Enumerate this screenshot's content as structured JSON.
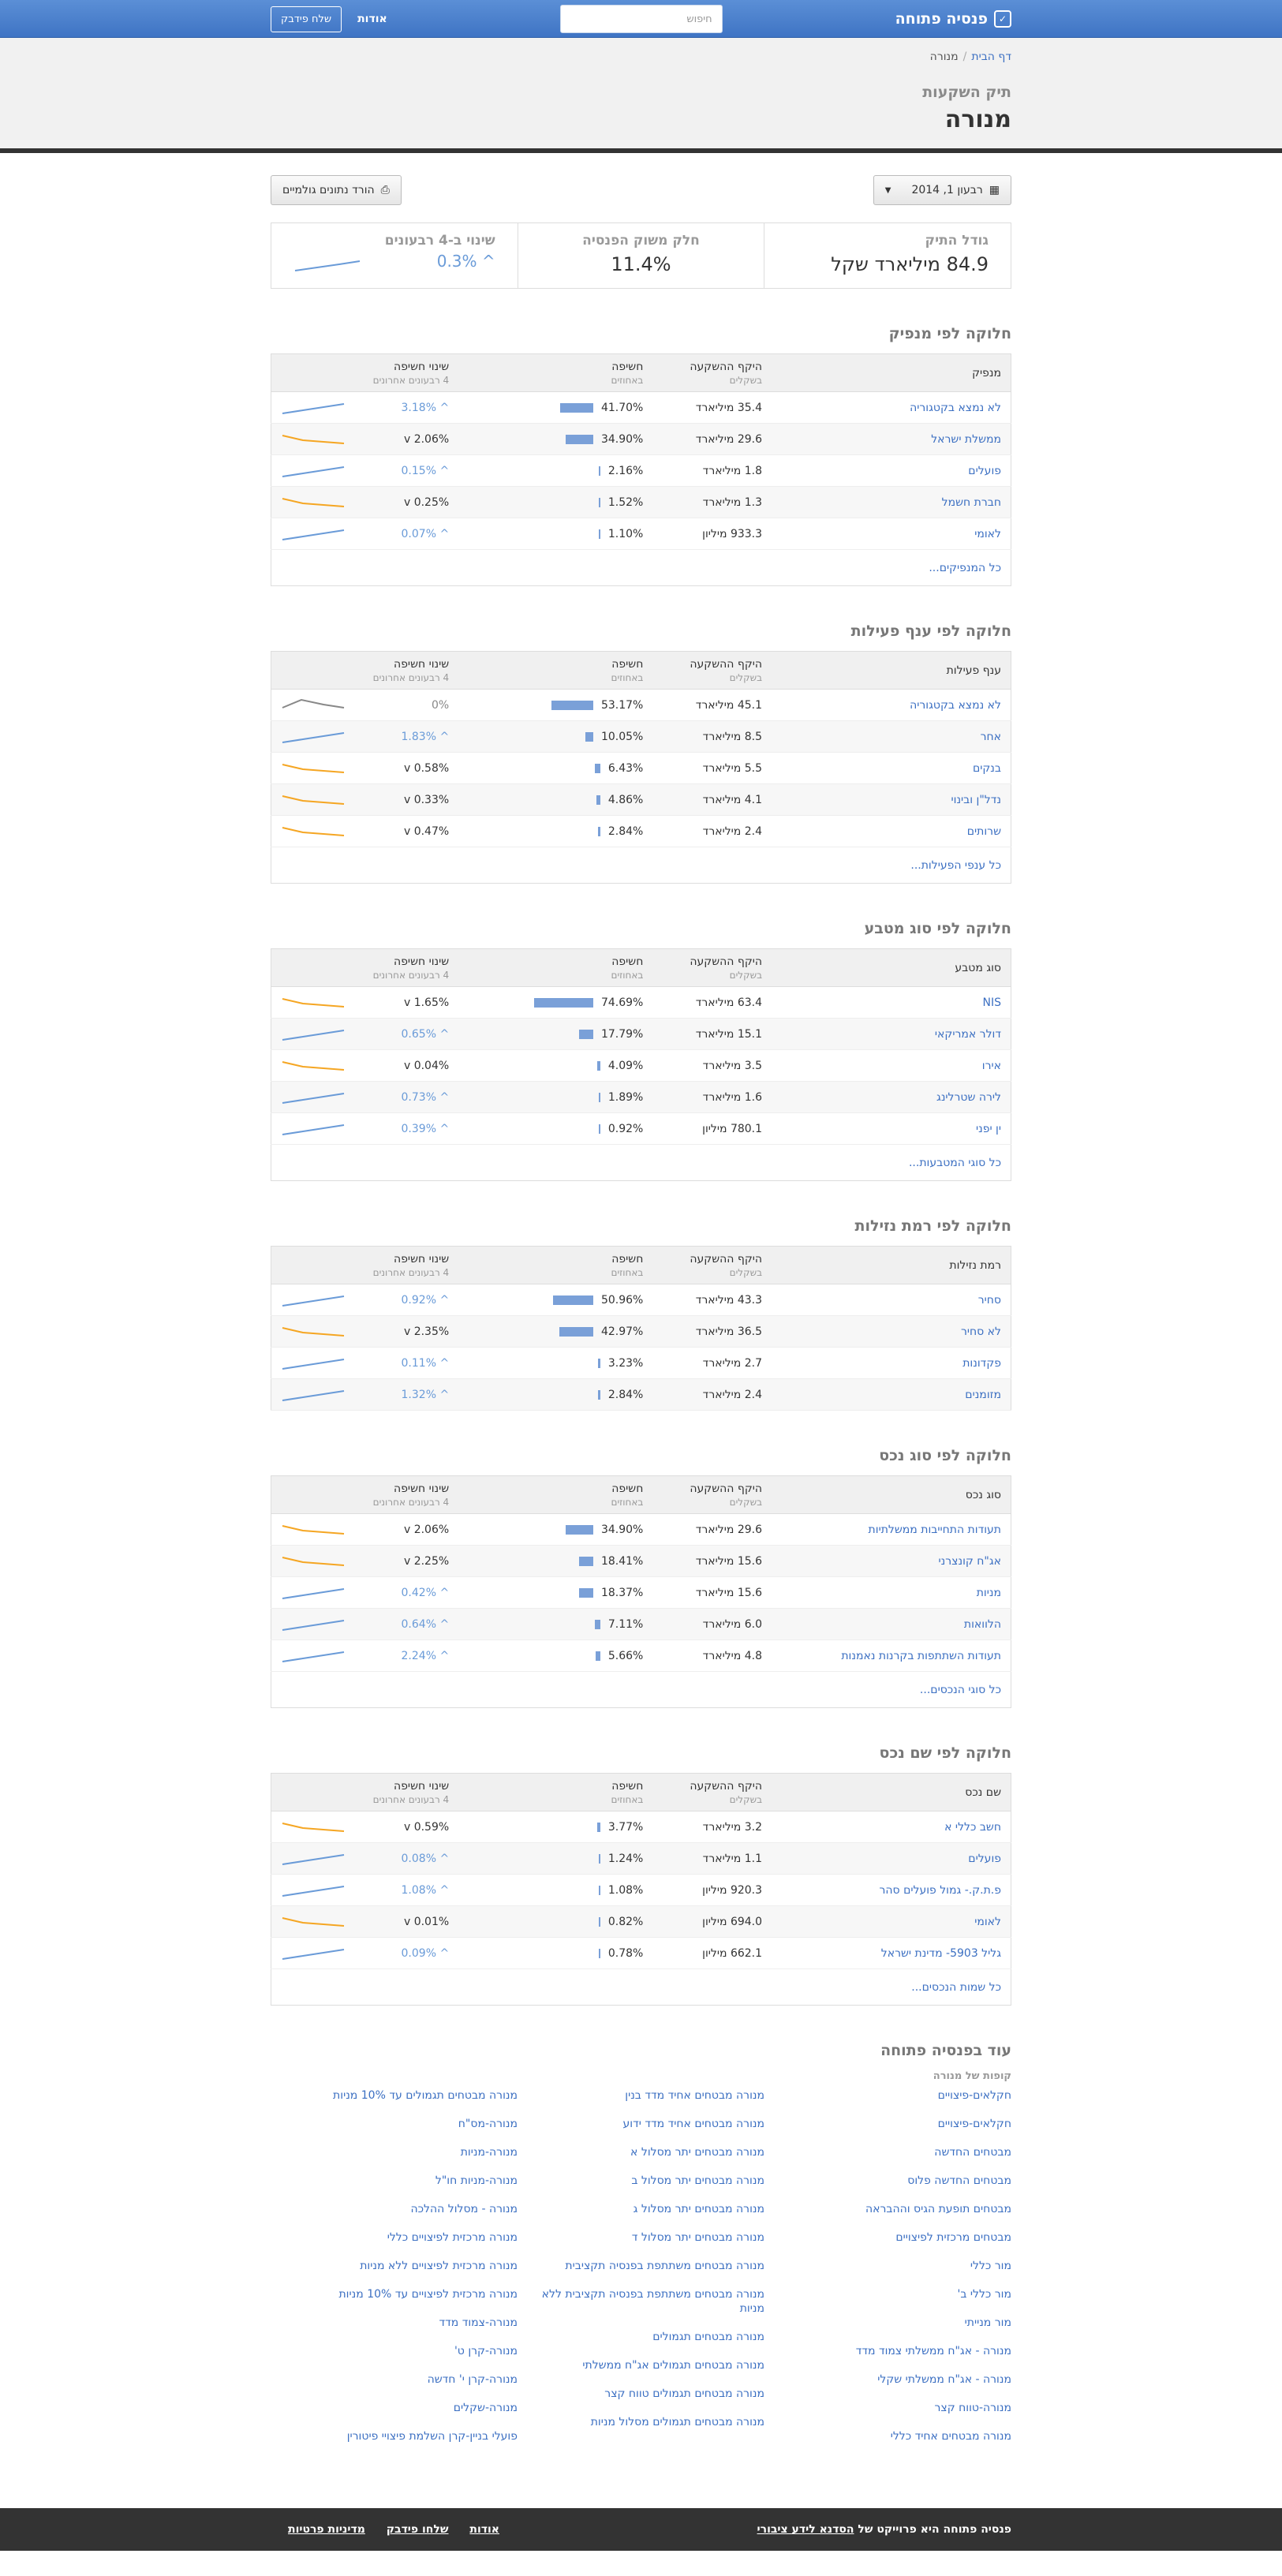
{
  "nav": {
    "brand": "פנסיה פתוחה",
    "search_placeholder": "חיפוש",
    "about": "אודות",
    "feedback": "שלח פידבק"
  },
  "header": {
    "crumb_home": "דף הבית",
    "crumb_current": "מנורה",
    "subtitle": "תיק השקעות",
    "title": "מנורה"
  },
  "toolbar": {
    "date": "רבעון 1, 2014",
    "download": "הורד נתונים גולמיים"
  },
  "stats": {
    "size_label": "גודל התיק",
    "size_value": "84.9 מיליארד שקל",
    "share_label": "חלק משוק הפנסיה",
    "share_value": "11.4%",
    "change_label": "שינוי ב-4 רבעונים",
    "change_value": "0.3%"
  },
  "colors": {
    "up": "#6a9bd8",
    "down": "#f5a623",
    "flat": "#888888",
    "bar": "#7aa0d8"
  },
  "sections": [
    {
      "title": "חלוקה לפי מנפיק",
      "col1": "מנפיק",
      "col2": "היקף ההשקעה",
      "col2s": "בשקלים",
      "col3": "חשיפה",
      "col3s": "באחוזים",
      "col4": "שינוי חשיפה",
      "col4s": "4 רבעונים אחרונים",
      "more": "כל המנפיקים...",
      "rows": [
        {
          "name": "לא נמצא בקטגוריה",
          "amount": "35.4 מיליארד",
          "pct": "41.70%",
          "bar": 41.7,
          "chg": "3.18%",
          "dir": "up"
        },
        {
          "name": "ממשלת ישראל",
          "amount": "29.6 מיליארד",
          "pct": "34.90%",
          "bar": 34.9,
          "chg": "2.06%",
          "dir": "down"
        },
        {
          "name": "פועלים",
          "amount": "1.8 מיליארד",
          "pct": "2.16%",
          "bar": 2.16,
          "chg": "0.15%",
          "dir": "up"
        },
        {
          "name": "חברת חשמל",
          "amount": "1.3 מיליארד",
          "pct": "1.52%",
          "bar": 1.52,
          "chg": "0.25%",
          "dir": "down"
        },
        {
          "name": "לאומי",
          "amount": "933.3 מיליון",
          "pct": "1.10%",
          "bar": 1.1,
          "chg": "0.07%",
          "dir": "up"
        }
      ]
    },
    {
      "title": "חלוקה לפי ענף פעילות",
      "col1": "ענף פעילות",
      "col2": "היקף ההשקעה",
      "col2s": "בשקלים",
      "col3": "חשיפה",
      "col3s": "באחוזים",
      "col4": "שינוי חשיפה",
      "col4s": "4 רבעונים אחרונים",
      "more": "כל ענפי הפעילות...",
      "rows": [
        {
          "name": "לא נמצא בקטגוריה",
          "amount": "45.1 מיליארד",
          "pct": "53.17%",
          "bar": 53.17,
          "chg": "0%",
          "dir": "flat"
        },
        {
          "name": "אחר",
          "amount": "8.5 מיליארד",
          "pct": "10.05%",
          "bar": 10.05,
          "chg": "1.83%",
          "dir": "up"
        },
        {
          "name": "בנקים",
          "amount": "5.5 מיליארד",
          "pct": "6.43%",
          "bar": 6.43,
          "chg": "0.58%",
          "dir": "down"
        },
        {
          "name": "נדל\"ן ובינוי",
          "amount": "4.1 מיליארד",
          "pct": "4.86%",
          "bar": 4.86,
          "chg": "0.33%",
          "dir": "down"
        },
        {
          "name": "שרותים",
          "amount": "2.4 מיליארד",
          "pct": "2.84%",
          "bar": 2.84,
          "chg": "0.47%",
          "dir": "down"
        }
      ]
    },
    {
      "title": "חלוקה לפי סוג מטבע",
      "col1": "סוג מטבע",
      "col2": "היקף ההשקעה",
      "col2s": "בשקלים",
      "col3": "חשיפה",
      "col3s": "באחוזים",
      "col4": "שינוי חשיפה",
      "col4s": "4 רבעונים אחרונים",
      "more": "כל סוגי המטבעות...",
      "rows": [
        {
          "name": "NIS",
          "amount": "63.4 מיליארד",
          "pct": "74.69%",
          "bar": 74.69,
          "chg": "1.65%",
          "dir": "down"
        },
        {
          "name": "דולר אמריקאי",
          "amount": "15.1 מיליארד",
          "pct": "17.79%",
          "bar": 17.79,
          "chg": "0.65%",
          "dir": "up"
        },
        {
          "name": "אירו",
          "amount": "3.5 מיליארד",
          "pct": "4.09%",
          "bar": 4.09,
          "chg": "0.04%",
          "dir": "down"
        },
        {
          "name": "לירה שטרלינג",
          "amount": "1.6 מיליארד",
          "pct": "1.89%",
          "bar": 1.89,
          "chg": "0.73%",
          "dir": "up"
        },
        {
          "name": "ין יפני",
          "amount": "780.1 מיליון",
          "pct": "0.92%",
          "bar": 0.92,
          "chg": "0.39%",
          "dir": "up"
        }
      ]
    },
    {
      "title": "חלוקה לפי רמת נזילות",
      "col1": "רמת נזילות",
      "col2": "היקף ההשקעה",
      "col2s": "בשקלים",
      "col3": "חשיפה",
      "col3s": "באחוזים",
      "col4": "שינוי חשיפה",
      "col4s": "4 רבעונים אחרונים",
      "more": "",
      "rows": [
        {
          "name": "סחיר",
          "amount": "43.3 מיליארד",
          "pct": "50.96%",
          "bar": 50.96,
          "chg": "0.92%",
          "dir": "up"
        },
        {
          "name": "לא סחיר",
          "amount": "36.5 מיליארד",
          "pct": "42.97%",
          "bar": 42.97,
          "chg": "2.35%",
          "dir": "down"
        },
        {
          "name": "פקדונות",
          "amount": "2.7 מיליארד",
          "pct": "3.23%",
          "bar": 3.23,
          "chg": "0.11%",
          "dir": "up"
        },
        {
          "name": "מזומנים",
          "amount": "2.4 מיליארד",
          "pct": "2.84%",
          "bar": 2.84,
          "chg": "1.32%",
          "dir": "up"
        }
      ]
    },
    {
      "title": "חלוקה לפי סוג נכס",
      "col1": "סוג נכס",
      "col2": "היקף ההשקעה",
      "col2s": "בשקלים",
      "col3": "חשיפה",
      "col3s": "באחוזים",
      "col4": "שינוי חשיפה",
      "col4s": "4 רבעונים אחרונים",
      "more": "כל סוגי הנכסים...",
      "rows": [
        {
          "name": "תעודות התחייבות ממשלתיות",
          "amount": "29.6 מיליארד",
          "pct": "34.90%",
          "bar": 34.9,
          "chg": "2.06%",
          "dir": "down"
        },
        {
          "name": "אג\"ח קונצרני",
          "amount": "15.6 מיליארד",
          "pct": "18.41%",
          "bar": 18.41,
          "chg": "2.25%",
          "dir": "down"
        },
        {
          "name": "מניות",
          "amount": "15.6 מיליארד",
          "pct": "18.37%",
          "bar": 18.37,
          "chg": "0.42%",
          "dir": "up"
        },
        {
          "name": "הלוואות",
          "amount": "6.0 מיליארד",
          "pct": "7.11%",
          "bar": 7.11,
          "chg": "0.64%",
          "dir": "up"
        },
        {
          "name": "תעודות השתתפות בקרנות נאמנות",
          "amount": "4.8 מיליארד",
          "pct": "5.66%",
          "bar": 5.66,
          "chg": "2.24%",
          "dir": "up"
        }
      ]
    },
    {
      "title": "חלוקה לפי שם נכס",
      "col1": "שם נכס",
      "col2": "היקף ההשקעה",
      "col2s": "בשקלים",
      "col3": "חשיפה",
      "col3s": "באחוזים",
      "col4": "שינוי חשיפה",
      "col4s": "4 רבעונים אחרונים",
      "more": "כל שמות הנכסים...",
      "rows": [
        {
          "name": "חשב כללי א",
          "amount": "3.2 מיליארד",
          "pct": "3.77%",
          "bar": 3.77,
          "chg": "0.59%",
          "dir": "down"
        },
        {
          "name": "פועלים",
          "amount": "1.1 מיליארד",
          "pct": "1.24%",
          "bar": 1.24,
          "chg": "0.08%",
          "dir": "up"
        },
        {
          "name": "פ.ת.ק.- גמול פועלים סהר",
          "amount": "920.3 מיליון",
          "pct": "1.08%",
          "bar": 1.08,
          "chg": "1.08%",
          "dir": "up"
        },
        {
          "name": "לאומי",
          "amount": "694.0 מיליון",
          "pct": "0.82%",
          "bar": 0.82,
          "chg": "0.01%",
          "dir": "down"
        },
        {
          "name": "גליל 5903- מדינת ישראל",
          "amount": "662.1 מיליון",
          "pct": "0.78%",
          "bar": 0.78,
          "chg": "0.09%",
          "dir": "up"
        }
      ]
    }
  ],
  "more": {
    "title": "עוד בפנסיה פתוחה",
    "subtitle": "קופות של מנורה",
    "col1": [
      "חקלאים-פיצויים",
      "חקלאים-פיצויים",
      "מבטחים החדשה",
      "מבטחים החדשה פלוס",
      "מבטחים תופעת הגיס וההבראה",
      "מבטחים מרכזית לפיצויים",
      "מור כללי",
      "מור כללי ב'",
      "מור מנייתי",
      "מנורה - אג\"ח ממשלתי צמוד מדד",
      "מנורה - אג\"ח ממשלתי שקלי",
      "מנורה-טווח קצר",
      "מנורה מבטחים אחיד כללי"
    ],
    "col2": [
      "מנורה מבטחים אחיד מדד בנין",
      "מנורה מבטחים אחיד מדד ידוע",
      "מנורה מבטחים יתר מסלול א",
      "מנורה מבטחים יתר מסלול ב",
      "מנורה מבטחים יתר מסלול ג",
      "מנורה מבטחים יתר מסלול ד",
      "מנורה מבטחים משתתפת בפנסיה תקציבית",
      "מנורה מבטחים משתתפת בפנסיה תקציבית ללא מניות",
      "מנורה מבטחים תגמולים",
      "מנורה מבטחים תגמולים אג\"ח ממשלתי",
      "מנורה מבטחים תגמולים טווח קצר",
      "מנורה מבטחים תגמולים מסלול מניות"
    ],
    "col3": [
      "מנורה מבטחים תגמולים עד 10% מניות",
      "מנורה-מס\"ח",
      "מנורה-מניות",
      "מנורה-מניות חו\"ל",
      "מנורה - מסלול ההלכה",
      "מנורה מרכזית לפיצויים כללי",
      "מנורה מרכזית לפיצויים ללא מניות",
      "מנורה מרכזית לפיצויים עד 10% מניות",
      "מנורה-צמוד מדד",
      "מנורה-קרן ט'",
      "מנורה-קרן י' חדשה",
      "מנורה-שקלים",
      "פועלי בניין-קרן השלמת פיצויי פיטורין"
    ]
  },
  "footer": {
    "project_text": "פנסיה פתוחה היא פרוייקט של",
    "project_link": "הסדנא לידע ציבורי",
    "about": "אודות",
    "feedback": "שלחו פידבק",
    "privacy": "מדיניות פרטיות"
  }
}
